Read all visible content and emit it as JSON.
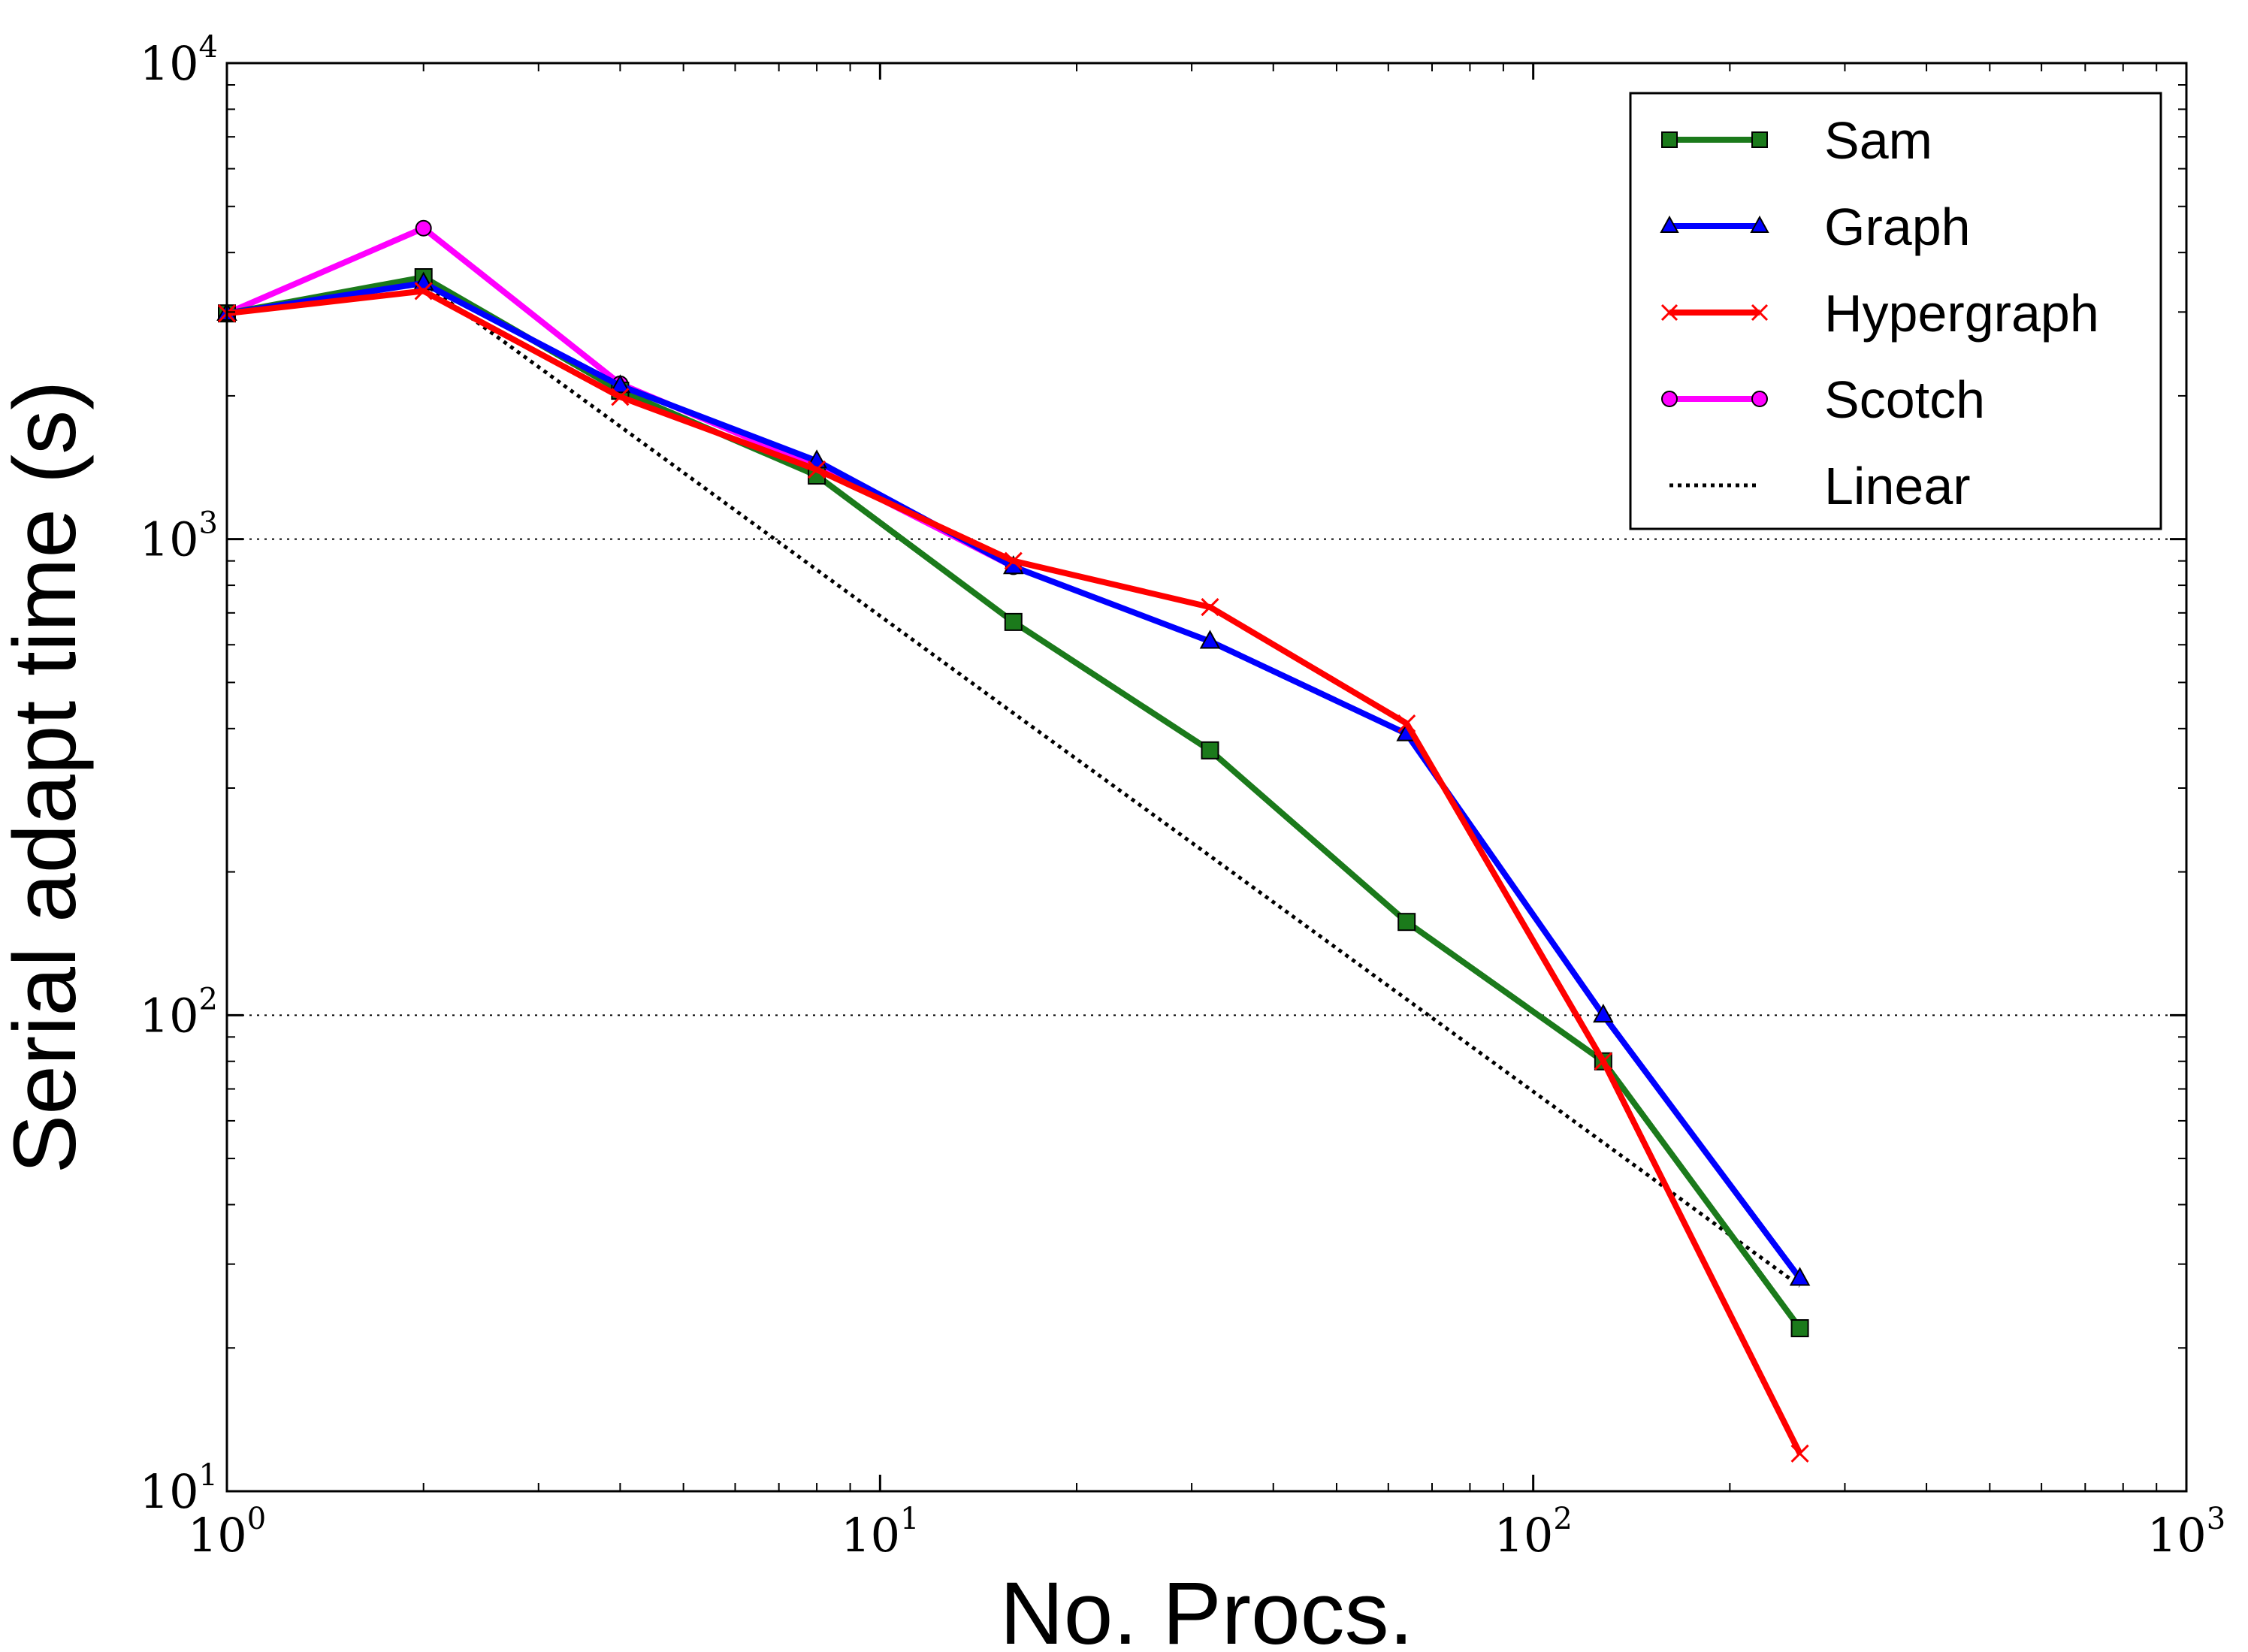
{
  "chart_data": {
    "type": "line",
    "xlabel": "No. Procs.",
    "ylabel": "Serial adapt time (s)",
    "xscale": "log",
    "yscale": "log",
    "xlim": [
      1,
      1000
    ],
    "ylim": [
      10,
      10000
    ],
    "x_ticks": [
      {
        "value": 1,
        "base": "10",
        "exp": "0"
      },
      {
        "value": 10,
        "base": "10",
        "exp": "1"
      },
      {
        "value": 100,
        "base": "10",
        "exp": "2"
      },
      {
        "value": 1000,
        "base": "10",
        "exp": "3"
      }
    ],
    "y_ticks": [
      {
        "value": 10,
        "base": "10",
        "exp": "1"
      },
      {
        "value": 100,
        "base": "10",
        "exp": "2"
      },
      {
        "value": 1000,
        "base": "10",
        "exp": "3"
      },
      {
        "value": 10000,
        "base": "10",
        "exp": "4"
      }
    ],
    "grid": "horizontal dotted at major y ticks",
    "legend_position": "top-right",
    "series": [
      {
        "name": "Sam",
        "color": "#1b7a1b",
        "marker": "square",
        "linestyle": "solid",
        "x": [
          1,
          2,
          4,
          8,
          16,
          32,
          64,
          128,
          256
        ],
        "y": [
          2980,
          3550,
          2050,
          1360,
          670,
          360,
          157,
          80,
          22
        ]
      },
      {
        "name": "Graph",
        "color": "#0000ff",
        "marker": "triangle",
        "linestyle": "solid",
        "x": [
          1,
          2,
          4,
          8,
          16,
          32,
          64,
          128,
          256
        ],
        "y": [
          2980,
          3450,
          2100,
          1460,
          875,
          610,
          390,
          100,
          28
        ]
      },
      {
        "name": "Hypergraph",
        "color": "#ff0000",
        "marker": "x",
        "linestyle": "solid",
        "x": [
          1,
          2,
          4,
          8,
          16,
          32,
          64,
          128,
          256
        ],
        "y": [
          2980,
          3320,
          1990,
          1400,
          900,
          720,
          410,
          80,
          12
        ]
      },
      {
        "name": "Scotch",
        "color": "#ff00ff",
        "marker": "circle",
        "linestyle": "solid",
        "x": [
          1,
          2,
          4,
          8,
          16
        ],
        "y": [
          2980,
          4500,
          2120,
          1420,
          875
        ]
      },
      {
        "name": "Linear",
        "color": "#000000",
        "marker": "none",
        "linestyle": "dotted",
        "x": [
          2,
          4,
          8,
          16,
          32,
          64,
          128,
          256
        ],
        "y": [
          3450,
          1725,
          862,
          431,
          216,
          108,
          54,
          27
        ]
      }
    ]
  }
}
